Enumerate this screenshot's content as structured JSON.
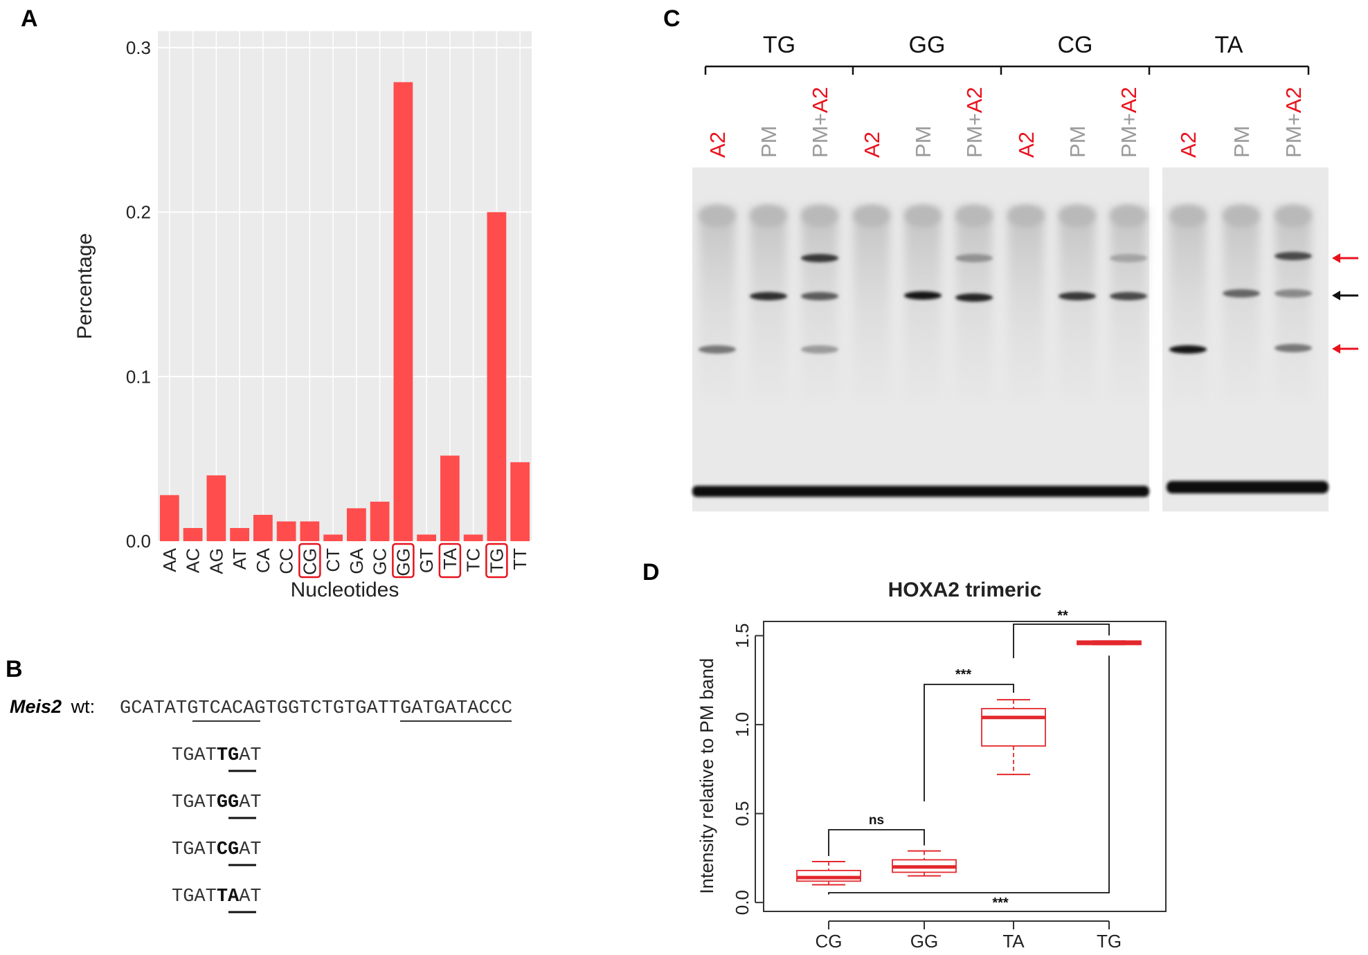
{
  "panels": {
    "a": "A",
    "b": "B",
    "c": "C",
    "d": "D"
  },
  "colors": {
    "bar": "#ff4d4d",
    "red": "#e8121d",
    "box": "#e3282d",
    "gray_label": "#9a9a9a",
    "plot_bg": "#ebebeb"
  },
  "chart_data": [
    {
      "type": "bar",
      "panel": "A",
      "title": "",
      "xlabel": "Nucleotides",
      "ylabel": "Percentage",
      "ylim": [
        0,
        0.31
      ],
      "yticks": [
        "0.0",
        "0.1",
        "0.2",
        "0.3"
      ],
      "grid": true,
      "categories": [
        "AA",
        "AC",
        "AG",
        "AT",
        "CA",
        "CC",
        "CG",
        "CT",
        "GA",
        "GC",
        "GG",
        "GT",
        "TA",
        "TC",
        "TG",
        "TT"
      ],
      "values": [
        0.028,
        0.008,
        0.04,
        0.008,
        0.016,
        0.012,
        0.012,
        0.004,
        0.02,
        0.024,
        0.279,
        0.004,
        0.052,
        0.004,
        0.2,
        0.048
      ],
      "highlighted": [
        "CG",
        "GG",
        "TA",
        "TG"
      ]
    },
    {
      "type": "box",
      "panel": "D",
      "title": "HOXA2 trimeric",
      "xlabel": "",
      "ylabel": "Intensity relative to PM band",
      "ylim": [
        -0.05,
        1.58
      ],
      "yticks": [
        "0.0",
        "0.5",
        "1.0",
        "1.5"
      ],
      "categories": [
        "CG",
        "GG",
        "TA",
        "TG"
      ],
      "boxes": [
        {
          "name": "CG",
          "min": 0.1,
          "q1": 0.12,
          "median": 0.14,
          "q3": 0.18,
          "max": 0.23
        },
        {
          "name": "GG",
          "min": 0.15,
          "q1": 0.17,
          "median": 0.2,
          "q3": 0.24,
          "max": 0.29
        },
        {
          "name": "TA",
          "min": 0.72,
          "q1": 0.88,
          "median": 1.04,
          "q3": 1.09,
          "max": 1.14
        },
        {
          "name": "TG",
          "min": 1.45,
          "q1": 1.45,
          "median": 1.46,
          "q3": 1.47,
          "max": 1.47
        }
      ],
      "significance": [
        {
          "label": "ns",
          "from": "CG",
          "to": "GG"
        },
        {
          "label": "***",
          "from": "GG",
          "to": "TA"
        },
        {
          "label": "**",
          "from": "TA",
          "to": "TG"
        },
        {
          "label": "***",
          "from": "CG",
          "to": "TG"
        }
      ]
    }
  ],
  "panel_b": {
    "gene": "Meis2",
    "suffix": "wt:",
    "sequence": "GCATATGTCACAGTGGTCTGTGATTGATGATACCC",
    "variants": [
      {
        "pre": "TGAT",
        "bold": "TG",
        "post": "AT"
      },
      {
        "pre": "TGAT",
        "bold": "GG",
        "post": "AT"
      },
      {
        "pre": "TGAT",
        "bold": "CG",
        "post": "AT"
      },
      {
        "pre": "TGAT",
        "bold": "TA",
        "post": "AT"
      }
    ]
  },
  "panel_c": {
    "groups": [
      "TG",
      "GG",
      "CG",
      "TA"
    ],
    "lanes": [
      "A2",
      "PM",
      "PM+A2"
    ],
    "lane_a2": "A2",
    "lane_pm": "PM",
    "lane_pm_plus": "PM+"
  }
}
